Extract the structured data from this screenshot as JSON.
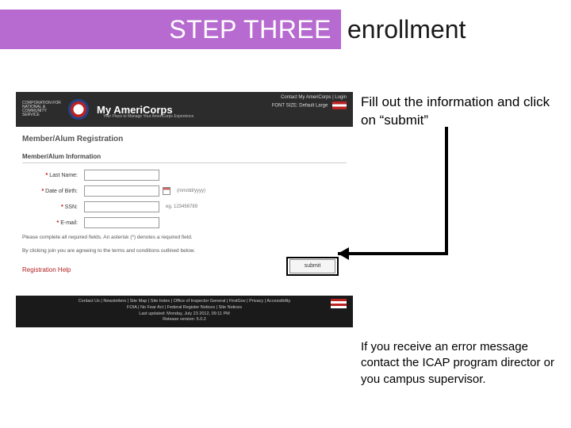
{
  "header": {
    "step_label": "STEP THREE",
    "suffix": "enrollment",
    "bar_color": "#b76ad0",
    "step_text_color": "#ffffff",
    "suffix_color": "#1a1a1a",
    "font_size": 32
  },
  "instructions": {
    "primary": "Fill out the information and click on “submit”",
    "secondary": "If you receive an error message contact the ICAP program director or you campus supervisor.",
    "font_size_primary": 17,
    "font_size_secondary": 15,
    "text_color": "#000000"
  },
  "arrow": {
    "stroke": "#000000",
    "stroke_width": 4
  },
  "screenshot": {
    "topband": {
      "bg_color": "#2c2c2c",
      "cns_logo_text": "CORPORATION FOR\nNATIONAL &\nCOMMUNITY\nSERVICE",
      "brand": "My AmeriCorps",
      "brand_sub": "Your Place to Manage Your AmeriCorps Experience",
      "right_line1": "Contact My AmeriCorps | Login",
      "right_line2": "FONT SIZE:  Default  Large"
    },
    "form": {
      "title": "Member/Alum Registration",
      "section_title": "Member/Alum Information",
      "fields": [
        {
          "label": "Last Name:",
          "required": true,
          "hint": ""
        },
        {
          "label": "Date of Birth:",
          "required": true,
          "hint": "(mm/dd/yyyy)",
          "has_calendar": true
        },
        {
          "label": "SSN:",
          "required": true,
          "hint": "eg. 123456789"
        },
        {
          "label": "E-mail:",
          "required": true,
          "hint": ""
        }
      ],
      "note_line1": "Please complete all required fields. An asterisk (*) denotes a required field.",
      "note_line2": "By clicking join you are agreeing to the terms and conditions outlined below.",
      "help_link": "Registration Help",
      "submit_label": "submit",
      "asterisk_color": "#cc0000",
      "help_color": "#b22222",
      "border_color": "#999999"
    },
    "footer": {
      "bg_color": "#1a1a1a",
      "line1": "Contact Us | Newsletters | Site Map | Site Index | Office of Inspector General | FirstGov | Privacy | Accessibility",
      "line2": "FOIA | No Fear Act | Federal Register Notices | Site Notices",
      "line3": "Last updated: Monday, July 23 2012, 09:11 PM",
      "line4": "Release version: 5.0.2"
    }
  }
}
